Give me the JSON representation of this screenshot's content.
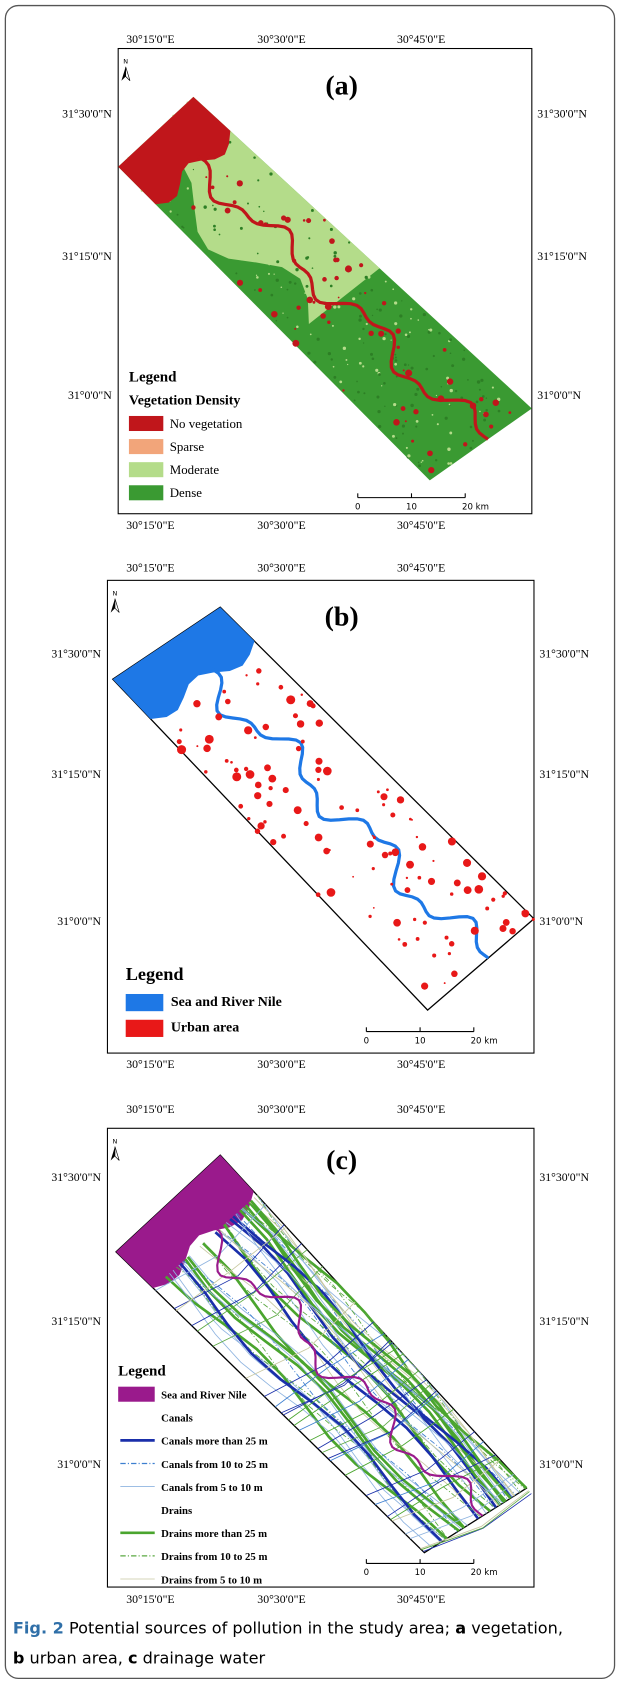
{
  "panels": [
    {
      "label": "(a)",
      "north": "N",
      "lon_labels": [
        "30°15'0\"E",
        "30°30'0\"E",
        "30°45'0\"E"
      ],
      "lat_labels": [
        "31°30'0\"N",
        "31°15'0\"N",
        "31°0'0\"N"
      ],
      "legend_title": "Legend",
      "legend_subtitle": "Vegetation Density",
      "legend_items": [
        {
          "name": "No vegetation",
          "color": "#c0161b",
          "style": "fill"
        },
        {
          "name": "Sparse",
          "color": "#f2a57a",
          "style": "fill"
        },
        {
          "name": "Moderate",
          "color": "#b4dc8a",
          "style": "fill"
        },
        {
          "name": "Dense",
          "color": "#3a9a32",
          "style": "fill"
        }
      ],
      "scale_labels": [
        "0",
        "10",
        "20 km"
      ]
    },
    {
      "label": "(b)",
      "north": "N",
      "lon_labels": [
        "30°15'0\"E",
        "30°30'0\"E",
        "30°45'0\"E"
      ],
      "lat_labels": [
        "31°30'0\"N",
        "31°15'0\"N",
        "31°0'0\"N"
      ],
      "legend_title": "Legend",
      "legend_items": [
        {
          "name": "Sea and River Nile",
          "color": "#1e78e6",
          "style": "fill"
        },
        {
          "name": "Urban area",
          "color": "#e81818",
          "style": "fill"
        }
      ],
      "scale_labels": [
        "0",
        "10",
        "20 km"
      ]
    },
    {
      "label": "(c)",
      "north": "N",
      "lon_labels": [
        "30°15'0\"E",
        "30°30'0\"E",
        "30°45'0\"E"
      ],
      "lat_labels": [
        "31°30'0\"N",
        "31°15'0\"N",
        "31°0'0\"N"
      ],
      "legend_title": "Legend",
      "legend_items": [
        {
          "name": "Sea and River Nile",
          "color": "#9a1a8c",
          "style": "fill"
        },
        {
          "name": "Canals",
          "style": "header"
        },
        {
          "name": "Canals more than 25 m",
          "color": "#1a2faa",
          "style": "thick"
        },
        {
          "name": "Canals from 10 to 25 m",
          "color": "#3d7fd0",
          "style": "dashdot"
        },
        {
          "name": "Canals from 5 to 10 m",
          "color": "#8fb4e0",
          "style": "thin"
        },
        {
          "name": "Drains",
          "style": "header"
        },
        {
          "name": "Drains more than 25 m",
          "color": "#4aa52e",
          "style": "thick"
        },
        {
          "name": "Drains from 10 to 25 m",
          "color": "#5aa840",
          "style": "dashdot"
        },
        {
          "name": "Drains from 5 to 10 m",
          "color": "#c8c8a0",
          "style": "thin"
        }
      ],
      "scale_labels": [
        "0",
        "10",
        "20 km"
      ]
    }
  ],
  "caption": {
    "figure": "Fig. 2",
    "text_1": " Potential sources of pollution in the study area; ",
    "a": "a",
    "text_a": " vegetation,",
    "b": "b",
    "text_b": " urban area, ",
    "c": "c",
    "text_c": " drainage water"
  }
}
